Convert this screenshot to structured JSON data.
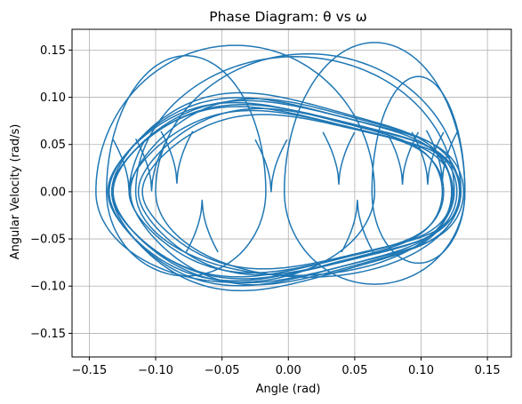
{
  "chart_data": {
    "type": "line",
    "title": "Phase Diagram: θ vs ω",
    "xlabel": "Angle (rad)",
    "ylabel": "Angular Velocity (rad/s)",
    "xlim": [
      -0.163,
      0.168
    ],
    "ylim": [
      -0.175,
      0.172
    ],
    "xticks": [
      -0.15,
      -0.1,
      -0.05,
      0.0,
      0.05,
      0.1,
      0.15
    ],
    "xtick_labels": [
      "−0.15",
      "−0.10",
      "−0.05",
      "0.00",
      "0.05",
      "0.10",
      "0.15"
    ],
    "yticks": [
      -0.15,
      -0.1,
      -0.05,
      0.0,
      0.05,
      0.1,
      0.15
    ],
    "ytick_labels": [
      "−0.15",
      "−0.10",
      "−0.05",
      "0.00",
      "0.05",
      "0.10",
      "0.15"
    ],
    "grid": true,
    "series": [
      {
        "color": "#1f77b4",
        "loops": [
          {
            "cx": -0.005,
            "r": 0.128,
            "w": 0.1
          },
          {
            "cx": 0.005,
            "r": 0.124,
            "w": 0.094
          },
          {
            "cx": -0.003,
            "r": 0.13,
            "w": 0.088
          },
          {
            "cx": 0.008,
            "r": 0.121,
            "w": 0.084
          },
          {
            "cx": -0.01,
            "r": 0.126,
            "w": 0.09
          },
          {
            "cx": 0.002,
            "r": 0.122,
            "w": 0.082
          },
          {
            "cx": -0.006,
            "r": 0.129,
            "w": 0.095
          },
          {
            "cx": 0.01,
            "r": 0.12,
            "w": 0.078
          },
          {
            "cx": 0.0,
            "r": 0.132,
            "w": 0.092
          },
          {
            "cx": -0.008,
            "r": 0.125,
            "w": 0.086
          }
        ],
        "lobes": [
          {
            "cx": -0.04,
            "rx": 0.105,
            "ry": 0.155
          },
          {
            "cx": 0.005,
            "rx": 0.12,
            "ry": 0.143
          },
          {
            "cx": 0.098,
            "rx": 0.035,
            "ry": 0.122
          },
          {
            "cx": 0.065,
            "rx": 0.068,
            "ry": 0.158
          },
          {
            "cx": 0.015,
            "rx": 0.115,
            "ry": 0.146
          },
          {
            "cx": -0.077,
            "rx": 0.06,
            "ry": 0.144
          }
        ],
        "cusps": [
          {
            "x": -0.12,
            "y": 0.0
          },
          {
            "x": -0.103,
            "y": 0.001
          },
          {
            "x": -0.084,
            "y": 0.009
          },
          {
            "x": -0.065,
            "y": -0.009
          },
          {
            "x": -0.013,
            "y": 0.0
          },
          {
            "x": 0.038,
            "y": 0.008
          },
          {
            "x": 0.052,
            "y": -0.009
          },
          {
            "x": 0.086,
            "y": 0.008
          },
          {
            "x": 0.105,
            "y": 0.008
          },
          {
            "x": 0.116,
            "y": 0.01
          }
        ]
      }
    ]
  }
}
